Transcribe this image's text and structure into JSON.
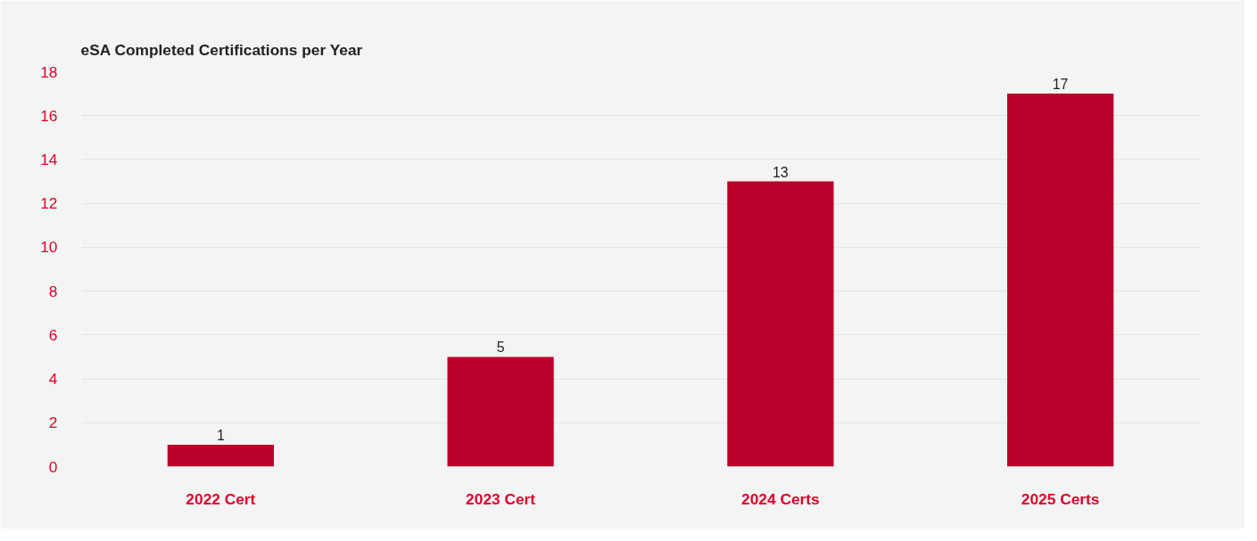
{
  "chart_data": {
    "type": "bar",
    "title": "eSA Completed Certifications per Year",
    "categories": [
      "2022 Cert",
      "2023 Cert",
      "2024 Certs",
      "2025 Certs"
    ],
    "values": [
      1,
      5,
      13,
      17
    ],
    "color": "#b8002a",
    "ylim": [
      0,
      18
    ],
    "yticks": [
      0,
      2,
      4,
      6,
      8,
      10,
      12,
      14,
      16,
      18
    ],
    "grid": "y",
    "data_labels": true
  }
}
